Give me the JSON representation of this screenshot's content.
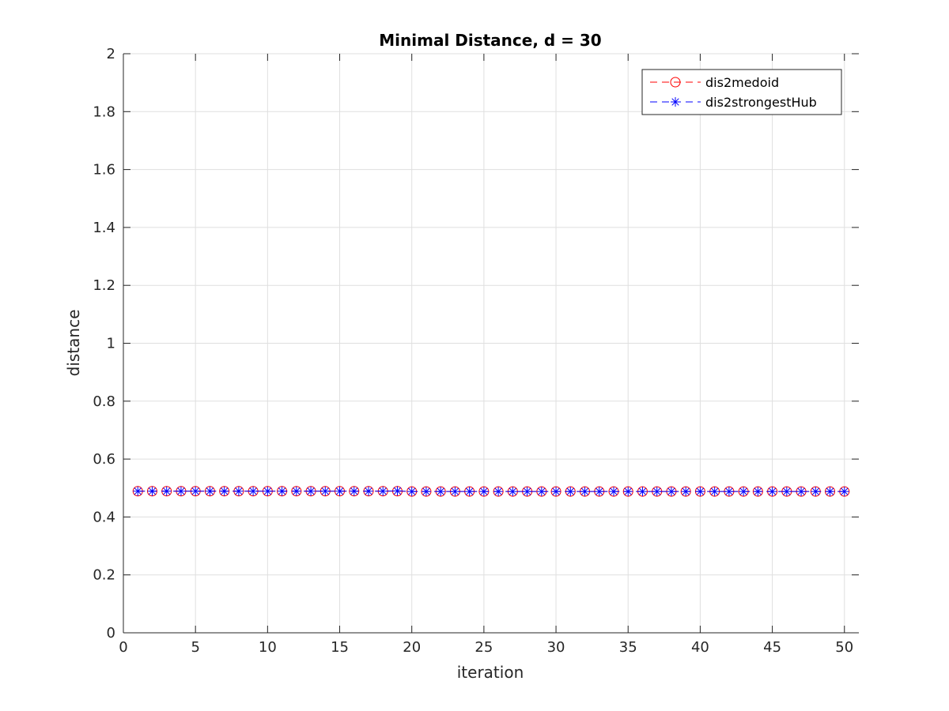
{
  "chart_data": {
    "type": "line",
    "title": "Minimal Distance, d = 30",
    "xlabel": "iteration",
    "ylabel": "distance",
    "xlim": [
      0,
      51
    ],
    "ylim": [
      0,
      2
    ],
    "xticks": [
      0,
      5,
      10,
      15,
      20,
      25,
      30,
      35,
      40,
      45,
      50
    ],
    "xtick_labels": [
      "0",
      "5",
      "10",
      "15",
      "20",
      "25",
      "30",
      "35",
      "40",
      "45",
      "50"
    ],
    "yticks": [
      0,
      0.2,
      0.4,
      0.6,
      0.8,
      1,
      1.2,
      1.4,
      1.6,
      1.8,
      2
    ],
    "ytick_labels": [
      "0",
      "0.2",
      "0.4",
      "0.6",
      "0.8",
      "1",
      "1.2",
      "1.4",
      "1.6",
      "1.8",
      "2"
    ],
    "grid": true,
    "legend_position": "top-right",
    "x": [
      1,
      2,
      3,
      4,
      5,
      6,
      7,
      8,
      9,
      10,
      11,
      12,
      13,
      14,
      15,
      16,
      17,
      18,
      19,
      20,
      21,
      22,
      23,
      24,
      25,
      26,
      27,
      28,
      29,
      30,
      31,
      32,
      33,
      34,
      35,
      36,
      37,
      38,
      39,
      40,
      41,
      42,
      43,
      44,
      45,
      46,
      47,
      48,
      49,
      50
    ],
    "series": [
      {
        "name": "dis2medoid",
        "color": "#ff0000",
        "marker": "circle",
        "line_style": "dashed",
        "values": [
          0.489,
          0.489,
          0.489,
          0.489,
          0.489,
          0.489,
          0.489,
          0.489,
          0.489,
          0.489,
          0.489,
          0.489,
          0.489,
          0.489,
          0.489,
          0.489,
          0.489,
          0.489,
          0.489,
          0.488,
          0.488,
          0.488,
          0.488,
          0.488,
          0.488,
          0.488,
          0.488,
          0.488,
          0.488,
          0.488,
          0.488,
          0.488,
          0.488,
          0.488,
          0.488,
          0.488,
          0.488,
          0.488,
          0.488,
          0.488,
          0.488,
          0.488,
          0.488,
          0.488,
          0.488,
          0.488,
          0.488,
          0.488,
          0.488,
          0.488
        ]
      },
      {
        "name": "dis2strongestHub",
        "color": "#0000ff",
        "marker": "asterisk",
        "line_style": "dashed",
        "values": [
          0.489,
          0.489,
          0.489,
          0.489,
          0.489,
          0.489,
          0.489,
          0.489,
          0.489,
          0.489,
          0.489,
          0.489,
          0.489,
          0.489,
          0.489,
          0.489,
          0.489,
          0.489,
          0.49,
          0.488,
          0.488,
          0.488,
          0.488,
          0.488,
          0.488,
          0.488,
          0.488,
          0.488,
          0.488,
          0.488,
          0.488,
          0.488,
          0.488,
          0.488,
          0.488,
          0.488,
          0.488,
          0.488,
          0.488,
          0.488,
          0.488,
          0.488,
          0.488,
          0.488,
          0.488,
          0.488,
          0.488,
          0.488,
          0.488,
          0.488
        ]
      }
    ]
  }
}
